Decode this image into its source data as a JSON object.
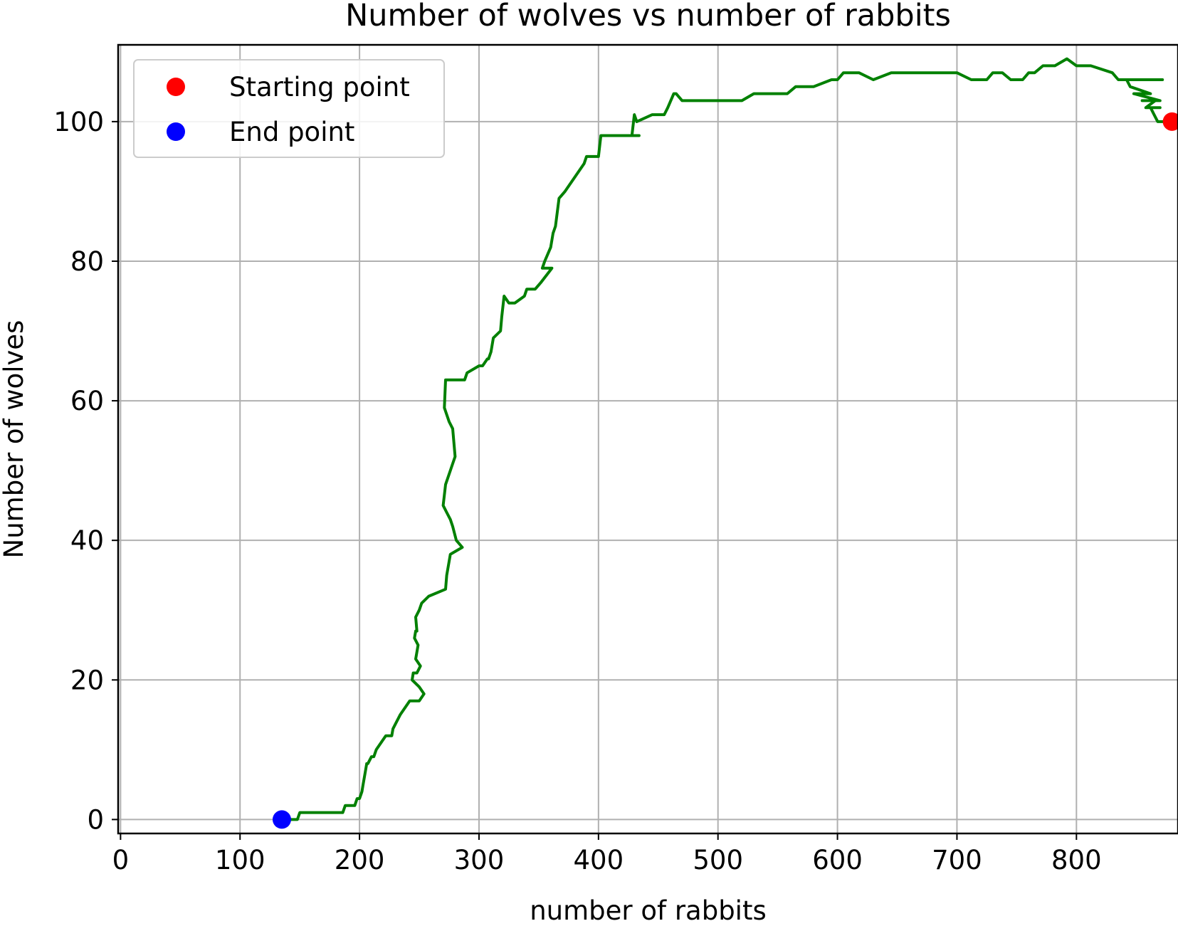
{
  "chart_data": {
    "type": "line",
    "title": "Number of wolves vs number of rabbits",
    "xlabel": "number of rabbits",
    "ylabel": "Number of wolves",
    "xlim": [
      -2,
      885
    ],
    "ylim": [
      -2,
      111
    ],
    "xticks": [
      0,
      100,
      200,
      300,
      400,
      500,
      600,
      700,
      800
    ],
    "yticks": [
      0,
      20,
      40,
      60,
      80,
      100
    ],
    "grid": true,
    "legend_position": "upper-left",
    "series": [
      {
        "color": "#008000",
        "x": [
          880,
          868,
          865,
          862,
          870,
          858,
          866,
          855,
          870,
          848,
          862,
          845,
          842,
          872,
          835,
          830,
          812,
          800,
          792,
          782,
          772,
          765,
          760,
          755,
          750,
          745,
          738,
          730,
          725,
          722,
          712,
          700,
          680,
          660,
          645,
          630,
          618,
          605,
          600,
          595,
          580,
          565,
          558,
          530,
          520,
          480,
          470,
          465,
          463,
          458,
          455,
          452,
          445,
          432,
          430,
          428,
          434,
          424,
          402,
          400,
          390,
          388,
          380,
          376,
          372,
          367,
          364,
          362,
          360,
          355,
          353,
          361,
          352,
          347,
          340,
          338,
          330,
          325,
          321,
          319,
          318,
          312,
          310,
          308,
          307,
          303,
          300,
          290,
          288,
          275,
          272,
          282,
          272,
          271,
          275,
          278,
          279,
          280,
          276,
          272,
          270,
          273,
          276,
          278,
          281,
          286,
          276,
          273,
          272,
          258,
          252,
          250,
          247,
          248,
          247,
          246,
          249,
          247,
          251,
          248,
          245,
          244,
          250,
          254,
          250,
          242,
          234,
          228,
          227,
          222,
          218,
          214,
          212,
          210,
          207,
          206,
          205,
          204,
          203,
          202,
          200,
          198,
          196,
          193,
          191,
          188,
          186,
          150,
          148,
          135
        ],
        "y": [
          100,
          100,
          101,
          102,
          102,
          102,
          103,
          103,
          103,
          104,
          104,
          105,
          106,
          106,
          106,
          107,
          108,
          108,
          109,
          108,
          108,
          107,
          107,
          106,
          106,
          106,
          107,
          107,
          106,
          106,
          106,
          107,
          107,
          107,
          107,
          106,
          107,
          107,
          106,
          106,
          105,
          105,
          104,
          104,
          103,
          103,
          103,
          104,
          104,
          102,
          101,
          101,
          101,
          100,
          101,
          98,
          98,
          98,
          98,
          95,
          95,
          94,
          92,
          91,
          90,
          89,
          85,
          84,
          82,
          80,
          79,
          79,
          77,
          76,
          76,
          75,
          74,
          74,
          75,
          72,
          70,
          69,
          67,
          66,
          66,
          65,
          65,
          64,
          63,
          63,
          63,
          63,
          63,
          59,
          57,
          56,
          54,
          52,
          50,
          48,
          45,
          44,
          43,
          42,
          40,
          39,
          38,
          35,
          33,
          32,
          31,
          30,
          29,
          27,
          27,
          26,
          25,
          23,
          22,
          21,
          21,
          20,
          19,
          18,
          17,
          17,
          15,
          13,
          12,
          12,
          11,
          10,
          9,
          9,
          8,
          8,
          7,
          6,
          5,
          4,
          3,
          3,
          2,
          2,
          2,
          2,
          1,
          1,
          0,
          0
        ]
      }
    ],
    "points": [
      {
        "name": "Starting point",
        "x": 880,
        "y": 100,
        "color": "#ff0000"
      },
      {
        "name": "End point",
        "x": 135,
        "y": 0,
        "color": "#0000ff"
      }
    ]
  }
}
